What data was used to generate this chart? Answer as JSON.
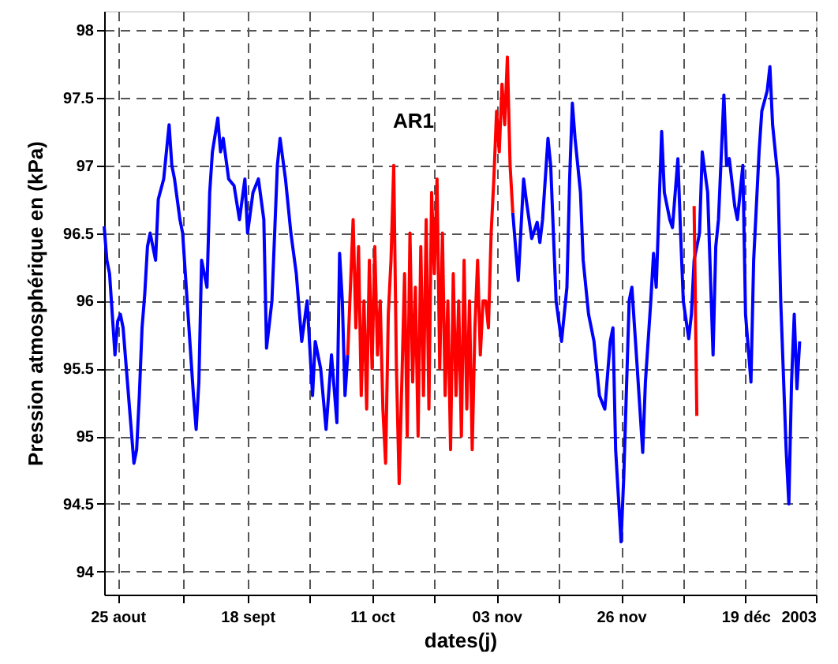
{
  "chart_data": {
    "type": "line",
    "xlabel": "dates(j)",
    "ylabel": "Pression atmosphérique en (kPa)",
    "annotations": [
      "AR1"
    ],
    "xlim": [
      "2002-08-22T12:00",
      "2003-01-01"
    ],
    "xticks": [
      {
        "value": "2002-08-25",
        "label": "25 aout"
      },
      {
        "value": "2002-09-06",
        "label": null
      },
      {
        "value": "2002-09-18",
        "label": "18 sept"
      },
      {
        "value": "2002-09-29T12:00",
        "label": null
      },
      {
        "value": "2002-10-11",
        "label": "11 oct"
      },
      {
        "value": "2002-10-22T12:00",
        "label": null
      },
      {
        "value": "2002-11-03",
        "label": "03 nov"
      },
      {
        "value": "2002-11-14T12:00",
        "label": null
      },
      {
        "value": "2002-11-26",
        "label": "26 nov"
      },
      {
        "value": "2002-12-07T12:00",
        "label": null
      },
      {
        "value": "2002-12-19",
        "label": "19 déc"
      },
      {
        "value": "2003-01-01",
        "label": "2003"
      }
    ],
    "ylim": [
      93.83,
      98.14
    ],
    "yticks": [
      94,
      94.5,
      95,
      95.5,
      96,
      96.5,
      97,
      97.5,
      98
    ],
    "grid": true,
    "series": [
      {
        "color": "#0000ff",
        "x": [
          "2002-08-22T12:00",
          "2002-08-23",
          "2002-08-23T12:00",
          "2002-08-24",
          "2002-08-24T12:00",
          "2002-08-25",
          "2002-08-25T12:00",
          "2002-08-26",
          "2002-08-27",
          "2002-08-28",
          "2002-08-28T12:00",
          "2002-08-29",
          "2002-08-29T12:00",
          "2002-08-30",
          "2002-08-30T12:00",
          "2002-08-31",
          "2002-09-01",
          "2002-09-01T12:00",
          "2002-09-02T12:00",
          "2002-09-03T12:00",
          "2002-09-04",
          "2002-09-04T12:00",
          "2002-09-05T12:00",
          "2002-09-06",
          "2002-09-07",
          "2002-09-08",
          "2002-09-08T12:00",
          "2002-09-09",
          "2002-09-09T12:00",
          "2002-09-10T12:00",
          "2002-09-11",
          "2002-09-11T12:00",
          "2002-09-12T12:00",
          "2002-09-13",
          "2002-09-13T12:00",
          "2002-09-14T12:00",
          "2002-09-15T12:00",
          "2002-09-16T12:00",
          "2002-09-17T12:00",
          "2002-09-18",
          "2002-09-19",
          "2002-09-20",
          "2002-09-21",
          "2002-09-21T12:00",
          "2002-09-22T12:00",
          "2002-09-23T12:00",
          "2002-09-24",
          "2002-09-25",
          "2002-09-26",
          "2002-09-27",
          "2002-09-28",
          "2002-09-29",
          "2002-09-30",
          "2002-09-30T12:00",
          "2002-10-01T12:00",
          "2002-10-02T12:00",
          "2002-10-03T12:00",
          "2002-10-04T12:00",
          "2002-10-05",
          "2002-10-05T12:00",
          "2002-10-06",
          "2002-10-06T12:00",
          "2002-10-21",
          "2002-11-06",
          "2002-11-07",
          "2002-11-08",
          "2002-11-08T12:00",
          "2002-11-09T12:00",
          "2002-11-10T12:00",
          "2002-11-11",
          "2002-11-11T12:00",
          "2002-11-12T12:00",
          "2002-11-13",
          "2002-11-13T12:00",
          "2002-11-14",
          "2002-11-15",
          "2002-11-16",
          "2002-11-16T12:00",
          "2002-11-17",
          "2002-11-17T12:00",
          "2002-11-18T12:00",
          "2002-11-19",
          "2002-11-20",
          "2002-11-21",
          "2002-11-22",
          "2002-11-23",
          "2002-11-24",
          "2002-11-24T12:00",
          "2002-11-25",
          "2002-11-26",
          "2002-11-26T12:00",
          "2002-11-27T12:00",
          "2002-11-28",
          "2002-11-29",
          "2002-11-30",
          "2002-11-30T12:00",
          "2002-12-01T12:00",
          "2002-12-02",
          "2002-12-02T12:00",
          "2002-12-03T12:00",
          "2002-12-04",
          "2002-12-05",
          "2002-12-05T12:00",
          "2002-12-06T12:00",
          "2002-12-07",
          "2002-12-07T12:00",
          "2002-12-08T12:00",
          "2002-12-09",
          "2002-12-09T12:00",
          "2002-12-10T12:00",
          "2002-12-11",
          "2002-12-12",
          "2002-12-13",
          "2002-12-13T12:00",
          "2002-12-14",
          "2002-12-15",
          "2002-12-15T12:00",
          "2002-12-16",
          "2002-12-17",
          "2002-12-17T12:00",
          "2002-12-18T12:00",
          "2002-12-19",
          "2002-12-20",
          "2002-12-20T12:00",
          "2002-12-21T12:00",
          "2002-12-22",
          "2002-12-23",
          "2002-12-23T12:00",
          "2002-12-24",
          "2002-12-25",
          "2002-12-25T12:00",
          "2002-12-26T12:00",
          "2002-12-27",
          "2002-12-27T12:00",
          "2002-12-28",
          "2002-12-28T12:00",
          "2002-12-29"
        ],
        "values": [
          96.55,
          96.3,
          96.2,
          95.9,
          95.6,
          95.85,
          95.9,
          95.8,
          95.3,
          94.8,
          94.9,
          95.3,
          95.8,
          96.05,
          96.4,
          96.5,
          96.3,
          96.75,
          96.9,
          97.3,
          97.0,
          96.9,
          96.6,
          96.5,
          95.9,
          95.3,
          95.05,
          95.4,
          96.3,
          96.1,
          96.8,
          97.1,
          97.35,
          97.1,
          97.2,
          96.9,
          96.85,
          96.6,
          96.9,
          96.5,
          96.8,
          96.9,
          96.6,
          95.65,
          96.0,
          97.0,
          97.2,
          96.9,
          96.5,
          96.2,
          95.7,
          96.0,
          95.3,
          95.7,
          95.5,
          95.05,
          95.6,
          95.1,
          96.35,
          96.0,
          95.3,
          95.6,
          null,
          96.65,
          96.15,
          96.9,
          96.74,
          96.46,
          96.58,
          96.43,
          96.6,
          97.2,
          97.0,
          96.5,
          96.0,
          95.7,
          96.1,
          96.9,
          97.46,
          97.2,
          96.8,
          96.3,
          95.9,
          95.7,
          95.3,
          95.2,
          95.7,
          95.8,
          94.9,
          94.22,
          94.7,
          96.0,
          96.1,
          95.5,
          94.88,
          95.4,
          96.0,
          96.35,
          96.1,
          97.25,
          96.8,
          96.6,
          96.54,
          97.05,
          96.5,
          96.0,
          95.72,
          95.9,
          96.3,
          96.5,
          97.1,
          96.8,
          95.6,
          96.4,
          96.6,
          97.52,
          97.0,
          97.05,
          96.7,
          96.6,
          97.0,
          95.9,
          95.4,
          96.3,
          97.1,
          97.4,
          97.55,
          97.73,
          97.3,
          96.9,
          96.0,
          94.9,
          94.5,
          95.4,
          95.9,
          95.35,
          95.7
        ]
      },
      {
        "color": "#ff0000",
        "x": [
          "2002-10-06T12:00",
          "2002-10-07",
          "2002-10-07T12:00",
          "2002-10-08",
          "2002-10-08T12:00",
          "2002-10-09",
          "2002-10-09T12:00",
          "2002-10-10",
          "2002-10-10T12:00",
          "2002-10-11",
          "2002-10-11T12:00",
          "2002-10-12",
          "2002-10-12T12:00",
          "2002-10-13",
          "2002-10-13T12:00",
          "2002-10-14",
          "2002-10-14T12:00",
          "2002-10-15",
          "2002-10-15T12:00",
          "2002-10-16",
          "2002-10-16T12:00",
          "2002-10-17",
          "2002-10-17T12:00",
          "2002-10-18",
          "2002-10-18T12:00",
          "2002-10-19",
          "2002-10-19T12:00",
          "2002-10-20",
          "2002-10-20T12:00",
          "2002-10-21",
          "2002-10-21T12:00",
          "2002-10-22",
          "2002-10-22T12:00",
          "2002-10-23",
          "2002-10-23T12:00",
          "2002-10-24",
          "2002-10-24T12:00",
          "2002-10-25",
          "2002-10-25T12:00",
          "2002-10-26",
          "2002-10-26T12:00",
          "2002-10-27",
          "2002-10-27T12:00",
          "2002-10-28",
          "2002-10-28T12:00",
          "2002-10-29",
          "2002-10-29T12:00",
          "2002-10-30",
          "2002-10-30T12:00",
          "2002-10-31",
          "2002-10-31T12:00",
          "2002-11-01",
          "2002-11-01T12:00",
          "2002-11-02",
          "2002-11-02T12:00",
          "2002-11-03",
          "2002-11-03T12:00",
          "2002-11-04",
          "2002-11-04T12:00",
          "2002-11-05",
          "2002-11-05T12:00",
          "2002-11-06",
          "2002-11-23",
          "2002-12-09T12:00",
          "2002-12-10"
        ],
        "values": [
          95.6,
          96.1,
          96.6,
          95.8,
          96.4,
          95.3,
          96.0,
          95.2,
          96.3,
          95.5,
          96.4,
          95.6,
          96.0,
          95.2,
          94.8,
          95.9,
          96.3,
          97.0,
          95.5,
          94.65,
          95.4,
          96.2,
          95.0,
          96.5,
          95.4,
          96.1,
          95.0,
          96.4,
          95.3,
          96.6,
          95.2,
          96.8,
          96.2,
          96.9,
          95.5,
          96.5,
          95.3,
          96.0,
          94.9,
          96.2,
          95.3,
          96.0,
          95.0,
          96.3,
          95.2,
          96.0,
          94.9,
          95.8,
          96.3,
          95.6,
          96.0,
          96.0,
          95.8,
          96.5,
          96.9,
          97.4,
          97.1,
          97.6,
          97.3,
          97.8,
          97.0,
          96.65,
          null,
          96.7,
          95.15
        ]
      }
    ]
  }
}
